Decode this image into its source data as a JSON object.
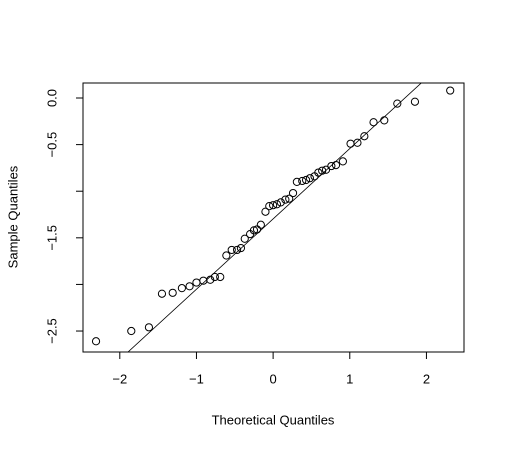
{
  "chart_data": {
    "type": "qq",
    "x_label": "Theoretical Quantiles",
    "y_label": "Sample Quantiles",
    "x": [
      -2.31,
      -1.85,
      -1.62,
      -1.45,
      -1.31,
      -1.19,
      -1.09,
      -1.0,
      -0.91,
      -0.82,
      -0.76,
      -0.69,
      -0.61,
      -0.54,
      -0.47,
      -0.42,
      -0.37,
      -0.3,
      -0.25,
      -0.21,
      -0.16,
      -0.1,
      -0.05,
      0.0,
      0.05,
      0.1,
      0.16,
      0.21,
      0.26,
      0.31,
      0.38,
      0.43,
      0.48,
      0.54,
      0.59,
      0.64,
      0.69,
      0.76,
      0.82,
      0.91,
      1.01,
      1.1,
      1.19,
      1.31,
      1.45,
      1.62,
      1.85,
      2.31
    ],
    "values": [
      -2.61,
      -2.5,
      -2.46,
      -2.1,
      -2.09,
      -2.04,
      -2.02,
      -1.98,
      -1.96,
      -1.95,
      -1.92,
      -1.92,
      -1.69,
      -1.63,
      -1.63,
      -1.61,
      -1.51,
      -1.46,
      -1.42,
      -1.41,
      -1.36,
      -1.22,
      -1.16,
      -1.15,
      -1.14,
      -1.12,
      -1.09,
      -1.08,
      -1.02,
      -0.9,
      -0.89,
      -0.88,
      -0.86,
      -0.84,
      -0.8,
      -0.78,
      -0.77,
      -0.73,
      -0.72,
      -0.68,
      -0.49,
      -0.48,
      -0.41,
      -0.26,
      -0.24,
      -0.06,
      -0.04,
      0.08
    ],
    "reference_line": {
      "intercept": -1.297,
      "slope": 0.7545
    },
    "color": "#000000",
    "xlim": [
      -2.48,
      2.49
    ],
    "ylim": [
      -2.725,
      0.161
    ],
    "xticks": [
      {
        "value": -2,
        "label": "−2"
      },
      {
        "value": -1,
        "label": "−1"
      },
      {
        "value": 0,
        "label": "0"
      },
      {
        "value": 1,
        "label": "1"
      },
      {
        "value": 2,
        "label": "2"
      }
    ],
    "yticks": [
      {
        "value": -2.5,
        "label": "−2.5"
      },
      {
        "value": -2,
        "label": null
      },
      {
        "value": -1.5,
        "label": "−1.5"
      },
      {
        "value": -1,
        "label": null
      },
      {
        "value": -0.5,
        "label": "−0.5"
      },
      {
        "value": 0,
        "label": "0.0"
      }
    ]
  }
}
